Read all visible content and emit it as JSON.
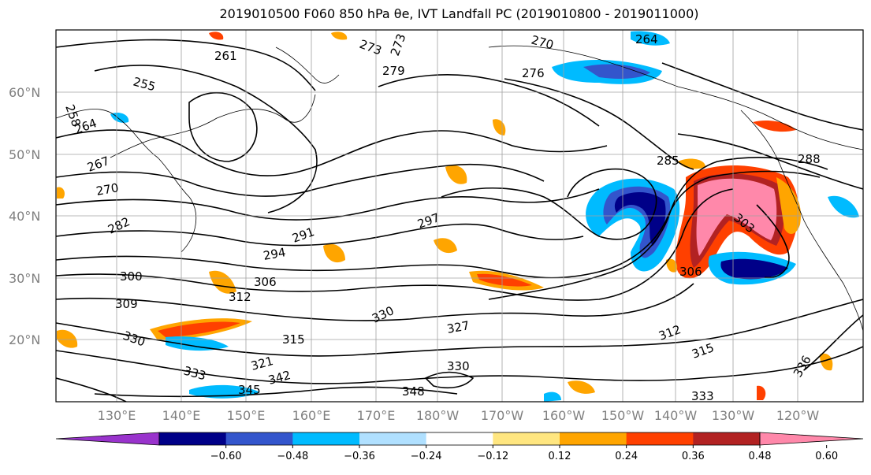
{
  "title": "2019010500 F060 850 hPa θe, IVT Landfall PC (2019010800 - 2019011000)",
  "lat_labels": [
    "60°N",
    "50°N",
    "40°N",
    "30°N",
    "20°N"
  ],
  "lon_labels": [
    "130°E",
    "140°E",
    "150°E",
    "160°E",
    "170°E",
    "180°W",
    "170°W",
    "160°W",
    "150°W",
    "140°W",
    "130°W",
    "120°W"
  ],
  "contour_labels": [
    "261",
    "273",
    "273",
    "270",
    "264",
    "255",
    "279",
    "276",
    "258",
    "264",
    "267",
    "270",
    "282",
    "285",
    "288",
    "291",
    "294",
    "297",
    "300",
    "303",
    "306",
    "306",
    "309",
    "312",
    "312",
    "315",
    "315",
    "321",
    "327",
    "330",
    "330",
    "330",
    "333",
    "333",
    "336",
    "342",
    "345",
    "348"
  ],
  "colorbar": {
    "ticks": [
      "−0.60",
      "−0.48",
      "−0.36",
      "−0.24",
      "−0.12",
      "0.12",
      "0.24",
      "0.36",
      "0.48",
      "0.60"
    ],
    "colors": [
      "#9933cc",
      "#000088",
      "#3355cc",
      "#00bbff",
      "#b0e0ff",
      "#ffffff",
      "#ffe680",
      "#ffa500",
      "#ff4000",
      "#b22222",
      "#ff88aa"
    ]
  },
  "colors": {
    "frame": "#000000",
    "grid": "#a0a0a0",
    "axis_labels": "#808080"
  }
}
